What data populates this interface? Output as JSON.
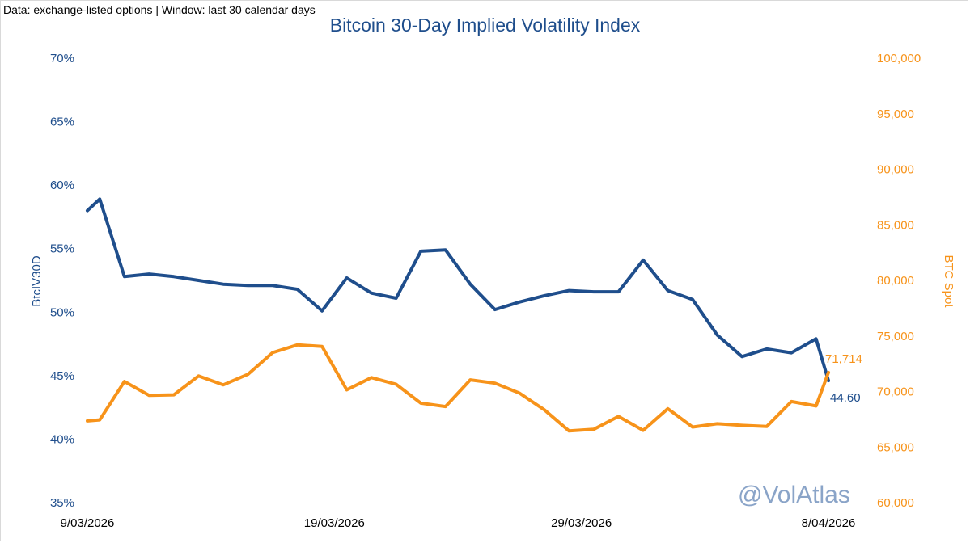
{
  "source_note": "Data: exchange-listed options | Window: last 30 calendar days",
  "chart_data": {
    "type": "line",
    "title": "Bitcoin 30-Day Implied Volatility Index",
    "ylabel_left": "BtcIV30D",
    "ylabel_right": "BTC Spot",
    "ylim_left": [
      35,
      70
    ],
    "ylim_right": [
      60000,
      100000
    ],
    "yticks_left": [
      "35%",
      "40%",
      "45%",
      "50%",
      "55%",
      "60%",
      "65%",
      "70%"
    ],
    "yticks_right": [
      "60,000",
      "65,000",
      "70,000",
      "75,000",
      "80,000",
      "85,000",
      "90,000",
      "95,000",
      "100,000"
    ],
    "xtick_labels": [
      "9/03/2026",
      "19/03/2026",
      "29/03/2026",
      "8/04/2026"
    ],
    "x_range": [
      0,
      30
    ],
    "series": [
      {
        "name": "BtcIV30D",
        "axis": "left",
        "color": "#1f4e8c",
        "x": [
          0,
          0.5,
          1.5,
          2.5,
          3.5,
          4.5,
          5.5,
          6.5,
          7.5,
          8.5,
          9.5,
          10.5,
          11.5,
          12.5,
          13.5,
          14.5,
          15.5,
          16.5,
          17.5,
          18.5,
          19.5,
          20.5,
          21.5,
          22.5,
          23.5,
          24.5,
          25.5,
          26.5,
          27.5,
          28.5,
          29.5,
          30
        ],
        "values": [
          58.0,
          58.9,
          52.8,
          53.0,
          52.8,
          52.5,
          52.2,
          52.1,
          52.1,
          51.8,
          50.1,
          52.7,
          51.5,
          51.1,
          54.8,
          54.9,
          52.2,
          50.2,
          50.8,
          51.3,
          51.7,
          51.6,
          51.6,
          54.1,
          51.7,
          51.0,
          48.2,
          46.5,
          47.1,
          46.8,
          47.9,
          44.6
        ]
      },
      {
        "name": "BTC Spot",
        "axis": "right",
        "color": "#f7931a",
        "x": [
          0,
          0.5,
          1.5,
          2.5,
          3.5,
          4.5,
          5.5,
          6.5,
          7.5,
          8.5,
          9.5,
          10.5,
          11.5,
          12.5,
          13.5,
          14.5,
          15.5,
          16.5,
          17.5,
          18.5,
          19.5,
          20.5,
          21.5,
          22.5,
          23.5,
          24.5,
          25.5,
          26.5,
          27.5,
          28.5,
          29.5,
          30
        ],
        "values": [
          67350,
          67450,
          70900,
          69650,
          69700,
          71400,
          70600,
          71550,
          73500,
          74200,
          74050,
          70150,
          71250,
          70650,
          68950,
          68650,
          71050,
          70750,
          69850,
          68350,
          66450,
          66600,
          67750,
          66500,
          68450,
          66800,
          67100,
          66950,
          66850,
          69100,
          68700,
          71714
        ]
      }
    ],
    "end_labels": {
      "iv": "44.60",
      "spot": "71,714"
    },
    "watermark": "@VolAtlas",
    "grid": false
  }
}
